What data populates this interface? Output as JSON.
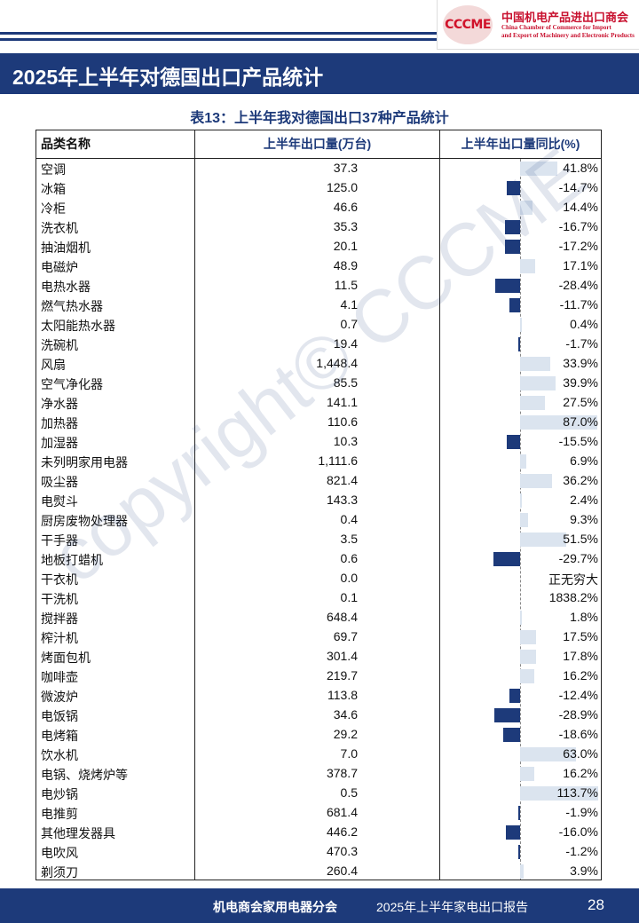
{
  "header": {
    "logo_mark": "CCCME",
    "org_cn": "中国机电产品进出口商会",
    "org_en_line1": "China Chamber of Commerce for Import",
    "org_en_line2": "and Export of Machinery and Electronic Products",
    "section_title": "2025年上半年对德国出口产品统计",
    "colors": {
      "brand_navy": "#1d3a7a",
      "brand_red": "#c8102e",
      "positive_bar": "#dbe4ef",
      "negative_bar": "#1d3a7a"
    }
  },
  "table": {
    "caption": "表13：上半年我对德国出口37种产品统计",
    "columns": [
      "品类名称",
      "上半年出口量(万台)",
      "上半年出口量同比(%)"
    ],
    "rows": [
      {
        "name": "空调",
        "qty": "37.3",
        "yoy": "41.8%",
        "yoy_value": 41.8
      },
      {
        "name": "冰箱",
        "qty": "125.0",
        "yoy": "-14.7%",
        "yoy_value": -14.7
      },
      {
        "name": "冷柜",
        "qty": "46.6",
        "yoy": "14.4%",
        "yoy_value": 14.4
      },
      {
        "name": "洗衣机",
        "qty": "35.3",
        "yoy": "-16.7%",
        "yoy_value": -16.7
      },
      {
        "name": "抽油烟机",
        "qty": "20.1",
        "yoy": "-17.2%",
        "yoy_value": -17.2
      },
      {
        "name": "电磁炉",
        "qty": "48.9",
        "yoy": "17.1%",
        "yoy_value": 17.1
      },
      {
        "name": "电热水器",
        "qty": "11.5",
        "yoy": "-28.4%",
        "yoy_value": -28.4
      },
      {
        "name": "燃气热水器",
        "qty": "4.1",
        "yoy": "-11.7%",
        "yoy_value": -11.7
      },
      {
        "name": "太阳能热水器",
        "qty": "0.7",
        "yoy": "0.4%",
        "yoy_value": 0.4
      },
      {
        "name": "洗碗机",
        "qty": "19.4",
        "yoy": "-1.7%",
        "yoy_value": -1.7
      },
      {
        "name": "风扇",
        "qty": "1,448.4",
        "yoy": "33.9%",
        "yoy_value": 33.9
      },
      {
        "name": "空气净化器",
        "qty": "85.5",
        "yoy": "39.9%",
        "yoy_value": 39.9
      },
      {
        "name": "净水器",
        "qty": "141.1",
        "yoy": "27.5%",
        "yoy_value": 27.5
      },
      {
        "name": "加热器",
        "qty": "110.6",
        "yoy": "87.0%",
        "yoy_value": 87.0
      },
      {
        "name": "加湿器",
        "qty": "10.3",
        "yoy": "-15.5%",
        "yoy_value": -15.5
      },
      {
        "name": "未列明家用电器",
        "qty": "1,111.6",
        "yoy": "6.9%",
        "yoy_value": 6.9
      },
      {
        "name": "吸尘器",
        "qty": "821.4",
        "yoy": "36.2%",
        "yoy_value": 36.2
      },
      {
        "name": "电熨斗",
        "qty": "143.3",
        "yoy": "2.4%",
        "yoy_value": 2.4
      },
      {
        "name": "厨房废物处理器",
        "qty": "0.4",
        "yoy": "9.3%",
        "yoy_value": 9.3
      },
      {
        "name": "干手器",
        "qty": "3.5",
        "yoy": "51.5%",
        "yoy_value": 51.5
      },
      {
        "name": "地板打蜡机",
        "qty": "0.6",
        "yoy": "-29.7%",
        "yoy_value": -29.7
      },
      {
        "name": "干衣机",
        "qty": "0.0",
        "yoy": "正无穷大",
        "yoy_value": null
      },
      {
        "name": "干洗机",
        "qty": "0.1",
        "yoy": "1838.2%",
        "yoy_value": null
      },
      {
        "name": "搅拌器",
        "qty": "648.4",
        "yoy": "1.8%",
        "yoy_value": 1.8
      },
      {
        "name": "榨汁机",
        "qty": "69.7",
        "yoy": "17.5%",
        "yoy_value": 17.5
      },
      {
        "name": "烤面包机",
        "qty": "301.4",
        "yoy": "17.8%",
        "yoy_value": 17.8
      },
      {
        "name": "咖啡壶",
        "qty": "219.7",
        "yoy": "16.2%",
        "yoy_value": 16.2
      },
      {
        "name": "微波炉",
        "qty": "113.8",
        "yoy": "-12.4%",
        "yoy_value": -12.4
      },
      {
        "name": "电饭锅",
        "qty": "34.6",
        "yoy": "-28.9%",
        "yoy_value": -28.9
      },
      {
        "name": "电烤箱",
        "qty": "29.2",
        "yoy": "-18.6%",
        "yoy_value": -18.6
      },
      {
        "name": "饮水机",
        "qty": "7.0",
        "yoy": "63.0%",
        "yoy_value": 63.0
      },
      {
        "name": "电锅、烧烤炉等",
        "qty": "378.7",
        "yoy": "16.2%",
        "yoy_value": 16.2
      },
      {
        "name": "电炒锅",
        "qty": "0.5",
        "yoy": "113.7%",
        "yoy_value": 113.7
      },
      {
        "name": "电推剪",
        "qty": "681.4",
        "yoy": "-1.9%",
        "yoy_value": -1.9
      },
      {
        "name": "其他理发器具",
        "qty": "446.2",
        "yoy": "-16.0%",
        "yoy_value": -16.0
      },
      {
        "name": "电吹风",
        "qty": "470.3",
        "yoy": "-1.2%",
        "yoy_value": -1.2
      },
      {
        "name": "剃须刀",
        "qty": "260.4",
        "yoy": "3.9%",
        "yoy_value": 3.9
      }
    ]
  },
  "watermark": "copyright© CCCME",
  "footer": {
    "org": "机电商会家用电器分会",
    "report": "2025年上半年家电出口报告",
    "page": "28"
  }
}
